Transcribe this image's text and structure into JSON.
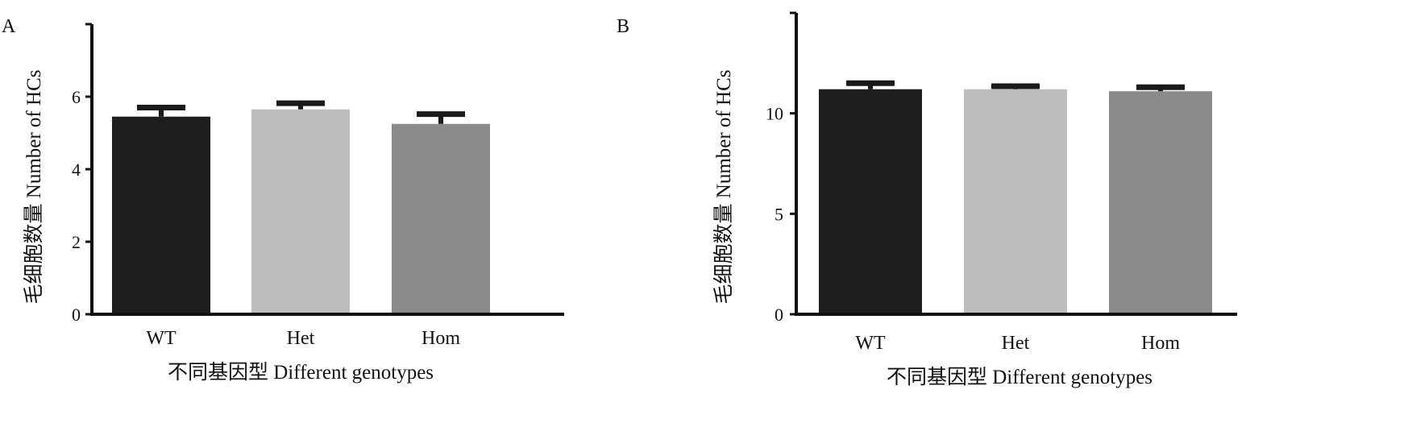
{
  "chart_data": [
    {
      "panel": "A",
      "type": "bar",
      "categories": [
        "WT",
        "Het",
        "Hom"
      ],
      "values": [
        5.45,
        5.65,
        5.25
      ],
      "errors": [
        0.25,
        0.17,
        0.27
      ],
      "colors": [
        "#1e1e1e",
        "#bdbdbd",
        "#8a8a8a"
      ],
      "ylabel": "毛细胞数量 Number of HCs",
      "xlabel": "不同基因型 Different genotypes",
      "ylim": [
        0,
        8
      ],
      "yticks": [
        0,
        2,
        4,
        6
      ]
    },
    {
      "panel": "B",
      "type": "bar",
      "categories": [
        "WT",
        "Het",
        "Hom"
      ],
      "values": [
        11.2,
        11.2,
        11.1
      ],
      "errors": [
        0.3,
        0.15,
        0.2
      ],
      "colors": [
        "#1e1e1e",
        "#bdbdbd",
        "#8a8a8a"
      ],
      "ylabel": "毛细胞数量 Number of HCs",
      "xlabel": "不同基因型 Different genotypes",
      "ylim": [
        0,
        15
      ],
      "yticks": [
        0,
        5,
        10
      ]
    }
  ]
}
